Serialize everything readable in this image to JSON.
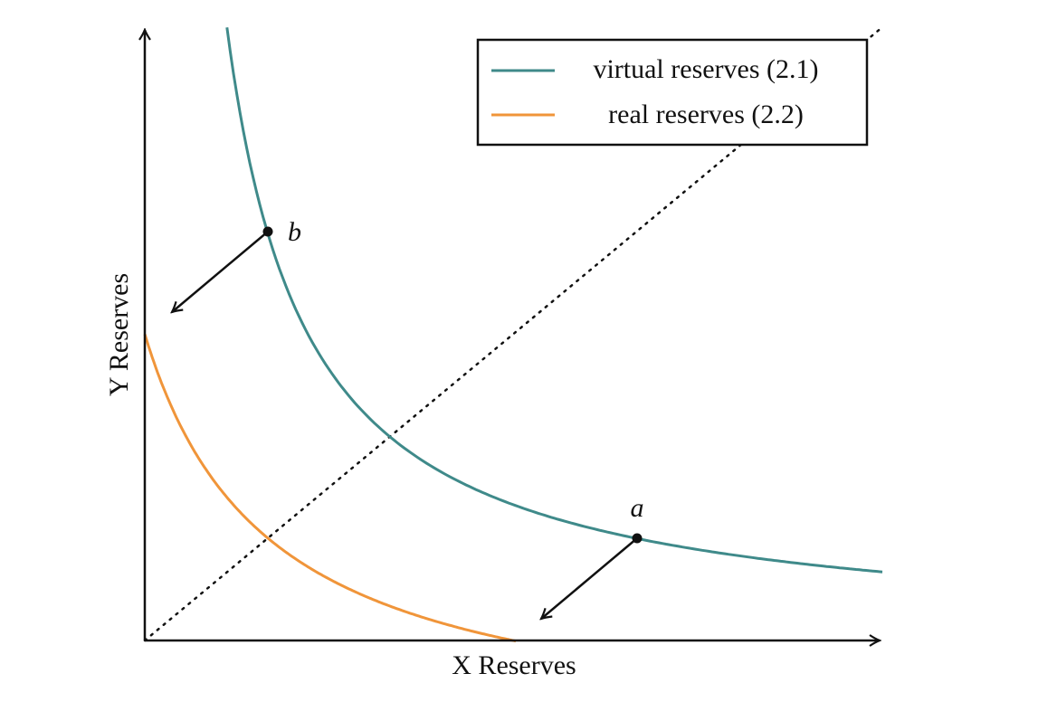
{
  "legend": [
    {
      "label": "virtual reserves (2.1)"
    },
    {
      "label": "real reserves (2.2)"
    }
  ],
  "x_axis": {
    "label": "X Reserves"
  },
  "y_axis": {
    "label": "Y Reserves"
  },
  "points": [
    {
      "label": "b"
    },
    {
      "label": "a"
    }
  ]
}
